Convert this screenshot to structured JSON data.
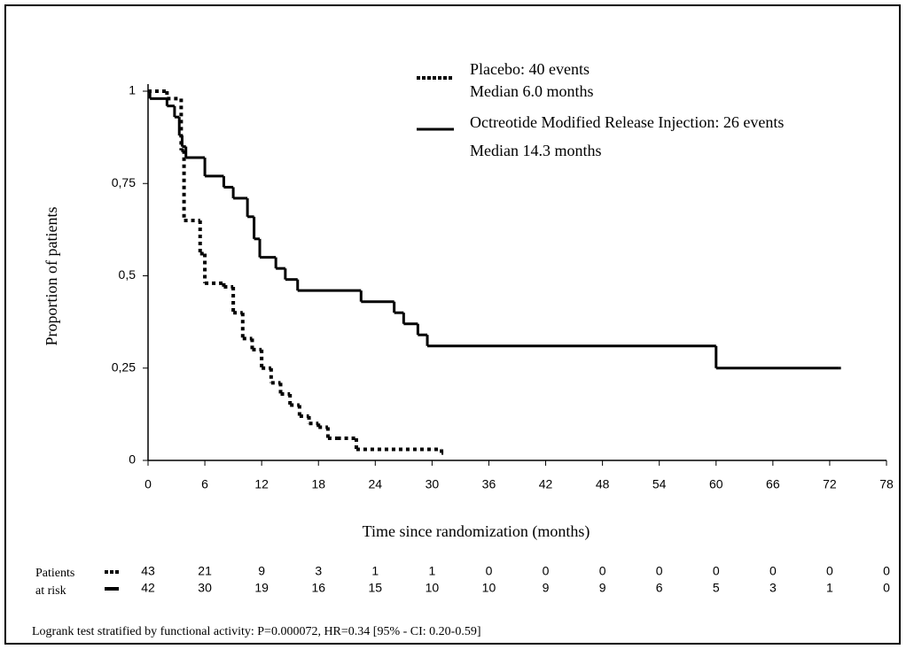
{
  "chart_data": {
    "type": "step",
    "y_label": "Proportion of patients",
    "x_label": "Time since randomization (months)",
    "xlim": [
      0,
      78
    ],
    "xticks": [
      0,
      6,
      12,
      18,
      24,
      30,
      36,
      42,
      48,
      54,
      60,
      66,
      72,
      78
    ],
    "ylim": [
      0,
      1
    ],
    "yticks": [
      0,
      {
        "value": 0.25,
        "label": "0,25"
      },
      {
        "value": 0.5,
        "label": "0,5"
      },
      {
        "value": 0.75,
        "label": "0,75"
      },
      1
    ],
    "series": [
      {
        "name": "Placebo: 40 events",
        "median": "Median 6.0 months",
        "color": "#000000",
        "dashed": true,
        "x": [
          0,
          2,
          3.5,
          3.8,
          5.5,
          6,
          8,
          9,
          10,
          11,
          12,
          13,
          14,
          15,
          16,
          17,
          18,
          19,
          20,
          22,
          31
        ],
        "values": [
          1,
          0.98,
          0.84,
          0.65,
          0.56,
          0.48,
          0.47,
          0.4,
          0.33,
          0.3,
          0.25,
          0.21,
          0.18,
          0.15,
          0.12,
          0.1,
          0.09,
          0.06,
          0.06,
          0.03,
          0.02
        ]
      },
      {
        "name": "Octreotide Modified Release Injection: 26 events",
        "median": "Median 14.3 months",
        "color": "#000000",
        "dashed": false,
        "x": [
          0,
          0.2,
          2,
          2.8,
          3.3,
          3.6,
          4,
          6,
          8,
          9,
          10.5,
          11.2,
          11.8,
          13.5,
          14.5,
          15.8,
          22.5,
          26,
          27,
          28.5,
          29.5,
          60,
          73
        ],
        "values": [
          1,
          0.98,
          0.96,
          0.93,
          0.88,
          0.85,
          0.82,
          0.77,
          0.74,
          0.71,
          0.66,
          0.6,
          0.55,
          0.52,
          0.49,
          0.46,
          0.43,
          0.4,
          0.37,
          0.34,
          0.31,
          0.25,
          0.25
        ]
      }
    ],
    "risk_table": {
      "labels": [
        "Patients",
        "at risk"
      ],
      "rows": [
        [
          43,
          21,
          9,
          3,
          1,
          1,
          0,
          0,
          0,
          0,
          0,
          0,
          0,
          0
        ],
        [
          42,
          30,
          19,
          16,
          15,
          10,
          10,
          9,
          9,
          6,
          5,
          3,
          1,
          0
        ]
      ]
    },
    "footnote": "Logrank test stratified by functional activity: P=0.000072, HR=0.34 [95% - CI: 0.20-0.59]"
  }
}
